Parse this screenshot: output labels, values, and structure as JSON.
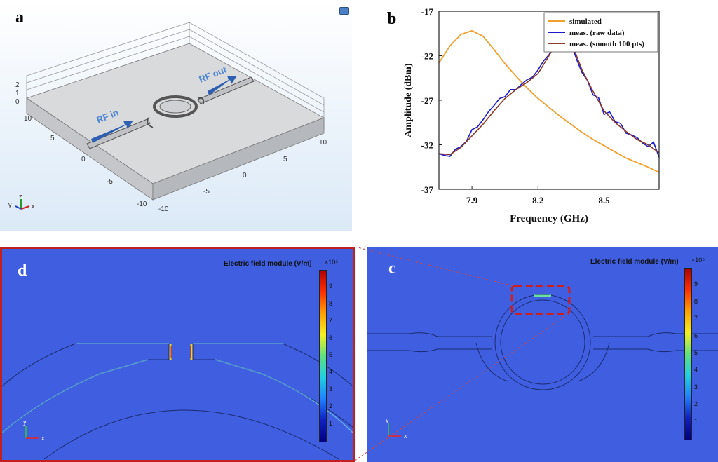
{
  "panel_a": {
    "label": "a",
    "rf_in": "RF in",
    "rf_out": "RF out",
    "z_ticks": [
      "2",
      "1",
      "0"
    ],
    "left_ticks": [
      "10",
      "5",
      "0",
      "-5",
      "-10"
    ],
    "right_ticks": [
      "10",
      "5",
      "0",
      "-5",
      "-10"
    ],
    "axes": {
      "x": "x",
      "y": "y",
      "z": "z"
    }
  },
  "panel_b": {
    "label": "b",
    "chart_data": {
      "type": "line",
      "xlabel": "Frequency (GHz)",
      "ylabel": "Amplitude (dBm)",
      "xlim": [
        7.75,
        8.75
      ],
      "ylim": [
        -37,
        -17
      ],
      "xticks": [
        "7.9",
        "8.2",
        "8.5"
      ],
      "xtick_values": [
        7.9,
        8.2,
        8.5
      ],
      "yticks": [
        "-17",
        "-22",
        "-27",
        "-32",
        "-37"
      ],
      "ytick_values": [
        -17,
        -22,
        -27,
        -32,
        -37
      ],
      "legend_position": "top-right",
      "series": [
        {
          "name": "simulated",
          "color": "#f0a030",
          "x": [
            7.75,
            7.8,
            7.85,
            7.9,
            7.95,
            8.0,
            8.05,
            8.1,
            8.15,
            8.2,
            8.25,
            8.3,
            8.35,
            8.4,
            8.45,
            8.5,
            8.55,
            8.6,
            8.65,
            8.7,
            8.75
          ],
          "y": [
            -22.8,
            -20.9,
            -19.6,
            -19.2,
            -19.8,
            -21.3,
            -22.9,
            -24.3,
            -25.6,
            -26.8,
            -27.8,
            -28.8,
            -29.7,
            -30.6,
            -31.4,
            -32.1,
            -32.8,
            -33.5,
            -34.0,
            -34.5,
            -35.1
          ]
        },
        {
          "name": "meas. (raw data)",
          "color": "#1c1ccc",
          "x": [
            7.75,
            7.775,
            7.8,
            7.825,
            7.85,
            7.875,
            7.9,
            7.925,
            7.95,
            7.975,
            8.0,
            8.025,
            8.05,
            8.075,
            8.1,
            8.125,
            8.15,
            8.175,
            8.2,
            8.225,
            8.25,
            8.275,
            8.3,
            8.325,
            8.35,
            8.375,
            8.4,
            8.425,
            8.45,
            8.475,
            8.5,
            8.525,
            8.55,
            8.575,
            8.6,
            8.625,
            8.65,
            8.675,
            8.7,
            8.725,
            8.75
          ],
          "y": [
            -33.0,
            -33.2,
            -33.3,
            -32.5,
            -32.2,
            -31.6,
            -30.3,
            -30.0,
            -29.2,
            -28.3,
            -27.6,
            -26.8,
            -26.6,
            -25.8,
            -25.8,
            -25.2,
            -24.7,
            -24.4,
            -23.6,
            -22.6,
            -21.9,
            -20.6,
            -19.6,
            -19.5,
            -20.6,
            -22.4,
            -23.9,
            -24.8,
            -26.4,
            -26.7,
            -28.6,
            -28.3,
            -29.4,
            -29.6,
            -30.7,
            -30.9,
            -31.2,
            -31.8,
            -32.2,
            -31.7,
            -33.4
          ]
        },
        {
          "name": "meas. (smooth 100 pts)",
          "color": "#8a3a2a",
          "x": [
            7.75,
            7.8,
            7.85,
            7.9,
            7.95,
            8.0,
            8.05,
            8.1,
            8.15,
            8.2,
            8.25,
            8.3,
            8.325,
            8.35,
            8.4,
            8.45,
            8.5,
            8.55,
            8.6,
            8.65,
            8.7,
            8.75
          ],
          "y": [
            -33.0,
            -33.1,
            -32.3,
            -31.0,
            -29.7,
            -28.2,
            -26.8,
            -25.8,
            -25.0,
            -24.0,
            -22.0,
            -19.8,
            -19.6,
            -20.4,
            -23.6,
            -26.0,
            -28.2,
            -29.5,
            -30.5,
            -31.4,
            -32.0,
            -32.9
          ]
        }
      ]
    }
  },
  "panel_d": {
    "label": "d",
    "colorbar_title": "Electric field module (V/m)",
    "colorbar_exponent": "×10⁵",
    "colorbar_ticks": [
      "9",
      "8",
      "7",
      "6",
      "5",
      "4",
      "3",
      "2",
      "1"
    ],
    "axes": {
      "x": "x",
      "y": "y"
    }
  },
  "panel_c": {
    "label": "c",
    "colorbar_title": "Electric field module (V/m)",
    "colorbar_exponent": "×10⁵",
    "colorbar_ticks": [
      "9",
      "8",
      "7",
      "6",
      "5",
      "4",
      "3",
      "2",
      "1"
    ],
    "axes": {
      "x": "x",
      "y": "y"
    }
  },
  "colors": {
    "field_background": "#3f5fe0",
    "highlight_box": "#cc1f1f"
  }
}
